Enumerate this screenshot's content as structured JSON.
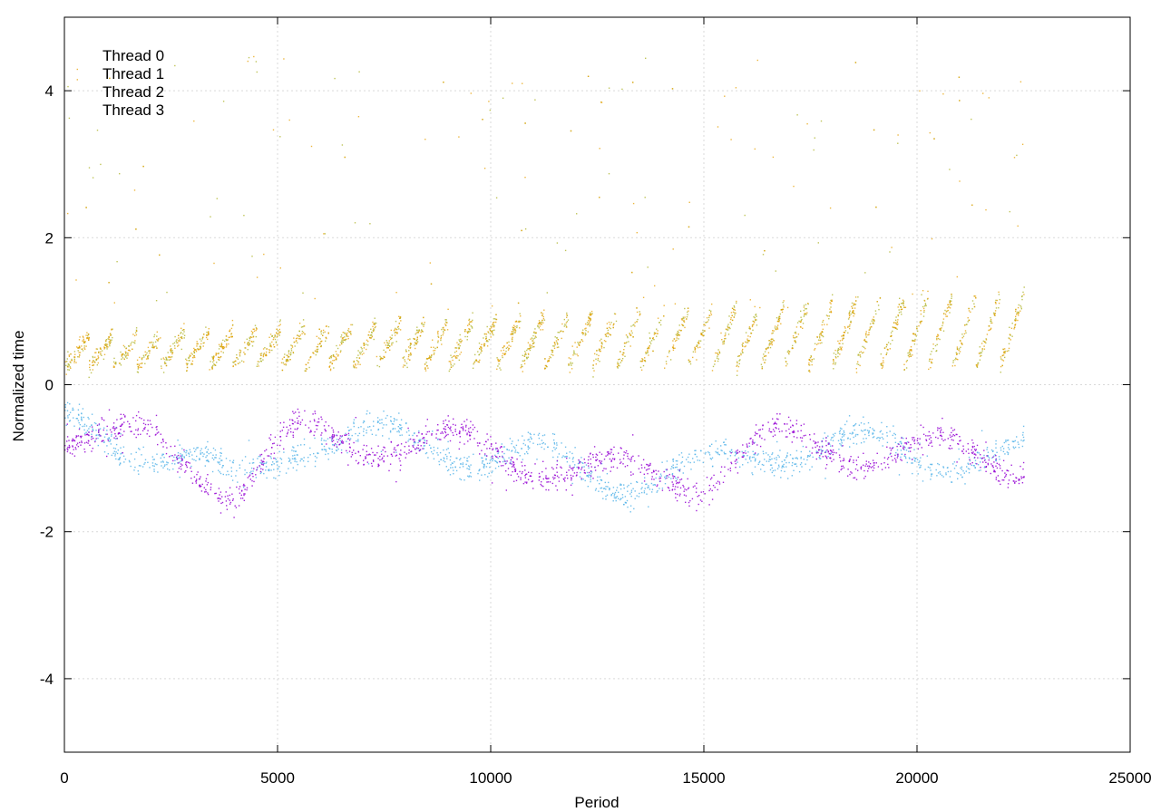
{
  "chart_data": {
    "type": "scatter",
    "title": "",
    "xlabel": "Period",
    "ylabel": "Normalized time",
    "xlim": [
      0,
      25000
    ],
    "ylim": [
      -5,
      5
    ],
    "x_ticks": [
      0,
      5000,
      10000,
      15000,
      20000,
      25000
    ],
    "x_tick_labels": [
      "0",
      "5000",
      "10000",
      "15000",
      "20000",
      "25000"
    ],
    "y_ticks": [
      -4,
      -2,
      0,
      2,
      4
    ],
    "y_tick_labels": [
      "-4",
      "-2",
      "0",
      "2",
      "4"
    ],
    "grid": true,
    "legend_position": "top-left",
    "x_extent": [
      0,
      22500
    ],
    "series": [
      {
        "name": "Thread 0",
        "color": "#aab020",
        "band": "upper",
        "typical_y_range": [
          0.0,
          1.2
        ],
        "sawtooth_segments": 40
      },
      {
        "name": "Thread 1",
        "color": "#56b4e9",
        "band": "lower",
        "typical_y_range": [
          -1.5,
          0.0
        ]
      },
      {
        "name": "Thread 2",
        "color": "#e69f00",
        "band": "upper",
        "typical_y_range": [
          0.0,
          1.4
        ],
        "sawtooth_segments": 40
      },
      {
        "name": "Thread 3",
        "color": "#9400d3",
        "band": "lower",
        "typical_y_range": [
          -1.6,
          -0.2
        ]
      }
    ],
    "lower_band_trend": [
      {
        "x": 0,
        "y": -0.6
      },
      {
        "x": 2500,
        "y": -0.9
      },
      {
        "x": 4000,
        "y": -1.4
      },
      {
        "x": 5500,
        "y": -0.7
      },
      {
        "x": 9000,
        "y": -0.8
      },
      {
        "x": 13000,
        "y": -1.25
      },
      {
        "x": 15000,
        "y": -1.2
      },
      {
        "x": 16500,
        "y": -0.8
      },
      {
        "x": 22500,
        "y": -1.0
      }
    ]
  }
}
